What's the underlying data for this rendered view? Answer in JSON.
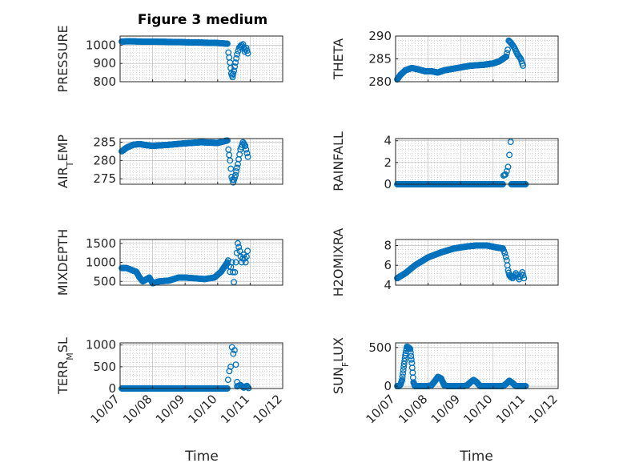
{
  "figure": {
    "title": "Figure 3 medium",
    "xlabel": "Time",
    "xticks": [
      "10/07",
      "10/08",
      "10/09",
      "10/10",
      "10/11",
      "10/12"
    ],
    "xlim": [
      7,
      12
    ],
    "marker_color": "#0072BD",
    "grid_color": "#b0b0b0"
  },
  "chart_data": [
    {
      "type": "scatter",
      "ylabel_parts": [
        {
          "t": "PRESSURE"
        }
      ],
      "ylim": [
        800,
        1050
      ],
      "yticks": [
        {
          "v": 800,
          "label": "800"
        },
        {
          "v": 900,
          "label": "900"
        },
        {
          "v": 1000,
          "label": "1000"
        }
      ],
      "segments": [
        {
          "x": [
            7.05,
            7.3,
            7.6,
            8.0,
            8.5,
            9.0,
            9.5,
            10.0,
            10.3
          ],
          "y": [
            1020,
            1021,
            1020,
            1019,
            1018,
            1016,
            1014,
            1012,
            1008
          ],
          "step": 0.012
        },
        {
          "x": [
            10.33,
            10.38,
            10.42,
            10.46,
            10.5,
            10.55,
            10.6,
            10.66,
            10.72
          ],
          "y": [
            960,
            905,
            845,
            825,
            860,
            905,
            950,
            985,
            1000
          ],
          "step": 0.025
        },
        {
          "x": [
            10.72,
            10.78,
            10.83,
            10.88,
            10.93
          ],
          "y": [
            990,
            1005,
            965,
            985,
            955
          ],
          "step": 0.03
        }
      ]
    },
    {
      "type": "scatter",
      "ylabel_parts": [
        {
          "t": "THETA"
        }
      ],
      "ylim": [
        280,
        290
      ],
      "yticks": [
        {
          "v": 280,
          "label": "280"
        },
        {
          "v": 285,
          "label": "285"
        },
        {
          "v": 290,
          "label": "290"
        }
      ],
      "segments": [
        {
          "x": [
            7.05,
            7.15,
            7.3,
            7.5,
            7.7,
            7.9,
            8.1,
            8.3,
            8.5,
            8.9,
            9.3,
            9.7,
            10.0,
            10.2,
            10.4
          ],
          "y": [
            280.5,
            281.5,
            282.5,
            283.0,
            282.7,
            282.3,
            282.3,
            282.0,
            282.5,
            283.0,
            283.5,
            283.7,
            284.0,
            284.5,
            285.5
          ],
          "step": 0.012
        },
        {
          "x": [
            10.4,
            10.45,
            10.48,
            10.55,
            10.65,
            10.75,
            10.85,
            10.92
          ],
          "y": [
            285.5,
            287.0,
            289.0,
            288.5,
            287.5,
            286.0,
            285.0,
            283.5
          ],
          "step": 0.025
        }
      ]
    },
    {
      "type": "scatter",
      "ylabel_parts": [
        {
          "t": "AIR"
        },
        {
          "t": "T",
          "sub": true
        },
        {
          "t": "EMP"
        }
      ],
      "ylim": [
        273.5,
        286
      ],
      "yticks": [
        {
          "v": 275,
          "label": "275"
        },
        {
          "v": 280,
          "label": "280"
        },
        {
          "v": 285,
          "label": "285"
        }
      ],
      "segments": [
        {
          "x": [
            7.05,
            7.2,
            7.4,
            7.6,
            7.8,
            8.0,
            8.5,
            9.0,
            9.5,
            10.0,
            10.3
          ],
          "y": [
            282.5,
            283.5,
            284.3,
            284.5,
            284.2,
            284.0,
            284.3,
            284.7,
            285.0,
            284.8,
            285.5
          ],
          "step": 0.012
        },
        {
          "x": [
            10.33,
            10.38,
            10.43,
            10.48,
            10.55,
            10.62,
            10.7,
            10.78,
            10.85,
            10.93
          ],
          "y": [
            283.0,
            280.0,
            275.5,
            274.0,
            276.0,
            279.0,
            283.0,
            285.0,
            284.0,
            281.0
          ],
          "step": 0.025
        }
      ]
    },
    {
      "type": "scatter",
      "ylabel_parts": [
        {
          "t": "RAINFALL"
        }
      ],
      "ylim": [
        0,
        4.2
      ],
      "yticks": [
        {
          "v": 0,
          "label": "0"
        },
        {
          "v": 2,
          "label": "2"
        },
        {
          "v": 4,
          "label": "4"
        }
      ],
      "segments": [
        {
          "x": [
            7.05,
            10.3
          ],
          "y": [
            0,
            0
          ],
          "step": 0.012
        },
        {
          "x": [
            10.32,
            10.38,
            10.42,
            10.46,
            10.5,
            10.54
          ],
          "y": [
            0.8,
            0.9,
            1.2,
            1.6,
            2.7,
            3.9
          ],
          "step": 0.04
        },
        {
          "x": [
            10.56,
            11.0
          ],
          "y": [
            0,
            0
          ],
          "step": 0.02
        }
      ]
    },
    {
      "type": "scatter",
      "ylabel_parts": [
        {
          "t": "MIXDEPTH"
        }
      ],
      "ylim": [
        400,
        1600
      ],
      "yticks": [
        {
          "v": 500,
          "label": "500"
        },
        {
          "v": 1000,
          "label": "1000"
        },
        {
          "v": 1500,
          "label": "1500"
        }
      ],
      "segments": [
        {
          "x": [
            7.05,
            7.2,
            7.35,
            7.5,
            7.6,
            7.7,
            7.8,
            7.9,
            8.0,
            8.2,
            8.5,
            8.8,
            9.0,
            9.3,
            9.6,
            9.9,
            10.1,
            10.3
          ],
          "y": [
            850,
            850,
            800,
            750,
            600,
            500,
            550,
            600,
            450,
            500,
            520,
            600,
            600,
            580,
            560,
            600,
            750,
            1000
          ],
          "step": 0.018
        },
        {
          "x": [
            10.32,
            10.38,
            10.44,
            10.5,
            10.56,
            10.62,
            10.68,
            10.74,
            10.8,
            10.86,
            10.92
          ],
          "y": [
            1050,
            750,
            1000,
            480,
            1000,
            1500,
            1300,
            1000,
            1200,
            1000,
            1300
          ],
          "step": 0.035
        }
      ]
    },
    {
      "type": "scatter",
      "ylabel_parts": [
        {
          "t": "H2OMIXRA"
        }
      ],
      "ylim": [
        4,
        8.6
      ],
      "yticks": [
        {
          "v": 4,
          "label": "4"
        },
        {
          "v": 6,
          "label": "6"
        },
        {
          "v": 8,
          "label": "8"
        }
      ],
      "segments": [
        {
          "x": [
            7.05,
            7.3,
            7.6,
            8.0,
            8.4,
            8.8,
            9.2,
            9.5,
            9.8,
            10.1,
            10.3
          ],
          "y": [
            4.7,
            5.2,
            6.0,
            6.8,
            7.3,
            7.7,
            7.9,
            8.0,
            8.0,
            7.8,
            7.7
          ],
          "step": 0.012
        },
        {
          "x": [
            10.3,
            10.36,
            10.42,
            10.46,
            10.5,
            10.55,
            10.6
          ],
          "y": [
            7.7,
            7.2,
            6.5,
            5.5,
            5.0,
            4.8,
            4.9
          ],
          "step": 0.025
        },
        {
          "x": [
            10.6,
            10.7,
            10.8,
            10.9,
            10.95
          ],
          "y": [
            4.7,
            5.2,
            4.6,
            5.3,
            4.7
          ],
          "step": 0.03
        }
      ]
    },
    {
      "type": "scatter",
      "ylabel_parts": [
        {
          "t": "TERR"
        },
        {
          "t": "M",
          "sub": true
        },
        {
          "t": "SL"
        }
      ],
      "ylim": [
        0,
        1050
      ],
      "yticks": [
        {
          "v": 0,
          "label": "0"
        },
        {
          "v": 500,
          "label": "500"
        },
        {
          "v": 1000,
          "label": "1000"
        }
      ],
      "segments": [
        {
          "x": [
            7.05,
            10.3
          ],
          "y": [
            0,
            0
          ],
          "step": 0.012
        },
        {
          "x": [
            10.32,
            10.36,
            10.4,
            10.44,
            10.48,
            10.52,
            10.56,
            10.6
          ],
          "y": [
            200,
            400,
            500,
            950,
            800,
            880,
            550,
            150
          ],
          "step": 0.03
        },
        {
          "x": [
            10.6,
            10.7,
            10.8,
            10.9,
            10.95
          ],
          "y": [
            50,
            80,
            20,
            60,
            10
          ],
          "step": 0.03
        }
      ]
    },
    {
      "type": "scatter",
      "ylabel_parts": [
        {
          "t": "SUN"
        },
        {
          "t": "F",
          "sub": true
        },
        {
          "t": "LUX"
        }
      ],
      "ylim": [
        -30,
        560
      ],
      "yticks": [
        {
          "v": 0,
          "label": "0"
        },
        {
          "v": 500,
          "label": "500"
        }
      ],
      "segments": [
        {
          "x": [
            7.05,
            7.1,
            7.15,
            7.2,
            7.25,
            7.3,
            7.35,
            7.4,
            7.45,
            7.5,
            7.55,
            7.6,
            7.7,
            7.8,
            7.9,
            8.0,
            8.1,
            8.2,
            8.3,
            8.4,
            8.5,
            8.6,
            8.7,
            8.8,
            8.9,
            9.0,
            9.1,
            9.2,
            9.3,
            9.4,
            9.5,
            9.6,
            9.7,
            9.8,
            9.9,
            10.0,
            10.1,
            10.2,
            10.3,
            10.4,
            10.5,
            10.6,
            10.7,
            10.8,
            10.9,
            11.0
          ],
          "y": [
            0,
            0,
            20,
            80,
            250,
            400,
            510,
            500,
            480,
            300,
            50,
            0,
            0,
            0,
            0,
            0,
            10,
            60,
            120,
            100,
            10,
            0,
            0,
            0,
            0,
            0,
            0,
            10,
            50,
            80,
            50,
            0,
            0,
            0,
            0,
            0,
            0,
            0,
            0,
            30,
            70,
            40,
            0,
            0,
            0,
            0
          ],
          "step": 0.012
        }
      ]
    }
  ]
}
